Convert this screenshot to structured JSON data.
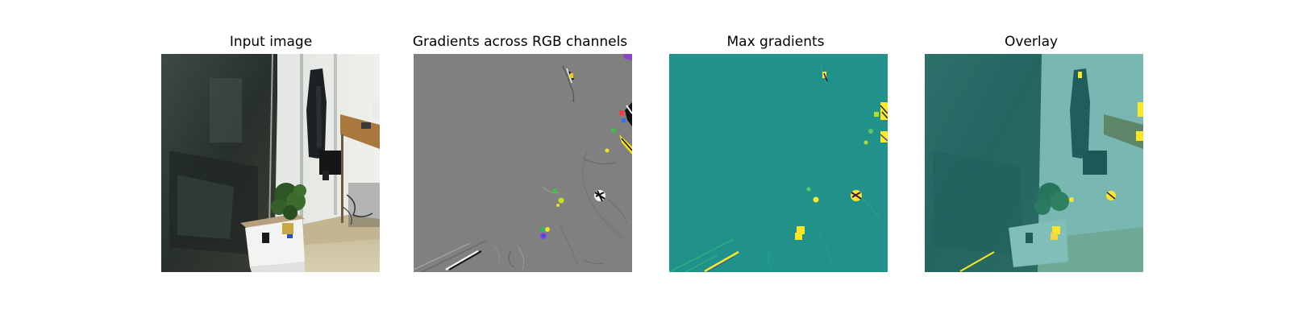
{
  "figure": {
    "panels": [
      {
        "title": "Input image"
      },
      {
        "title": "Gradients across RGB channels"
      },
      {
        "title": "Max gradients"
      },
      {
        "title": "Overlay"
      }
    ]
  },
  "colors": {
    "gradient_background": "#808080",
    "max_gradient_background": "#21918c",
    "highlight": "#fde725",
    "overlay_tint": "#21918c"
  }
}
